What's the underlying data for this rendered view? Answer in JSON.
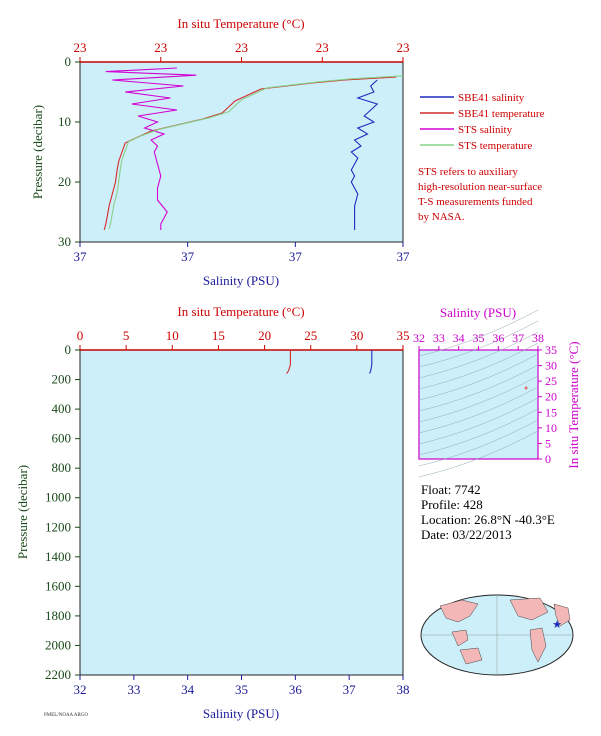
{
  "chart_data": [
    {
      "type": "line",
      "panel": "top",
      "top_axis_title": "In situ Temperature (°C)",
      "top_ticks": [
        "23",
        "23",
        "23",
        "23",
        "23"
      ],
      "bottom_axis_title": "Salinity (PSU)",
      "bottom_ticks": [
        "37",
        "37",
        "37",
        "37"
      ],
      "left_axis_title": "Pressure (decibar)",
      "left_ticks": [
        "0",
        "10",
        "20",
        "30"
      ],
      "ylim": [
        0,
        30
      ],
      "legend": [
        {
          "name": "SBE41 salinity",
          "color": "#1f2bbf"
        },
        {
          "name": "SBE41 temperature",
          "color": "#d42a2a"
        },
        {
          "name": "STS salinity",
          "color": "#d400d4"
        },
        {
          "name": "STS temperature",
          "color": "#88d088"
        }
      ],
      "note": [
        "STS refers to auxiliary",
        "high-resolution near-surface",
        "T-S measurements funded",
        "by NASA."
      ],
      "series": [
        {
          "name": "SBE41 salinity",
          "x_frac": [
            0.92,
            0.9,
            0.91,
            0.86,
            0.92,
            0.9,
            0.88,
            0.91,
            0.86,
            0.89,
            0.85,
            0.87,
            0.84,
            0.86,
            0.85,
            0.84,
            0.85,
            0.84,
            0.86,
            0.85,
            0.85,
            0.85
          ],
          "pressure": [
            3,
            4,
            5,
            6,
            7,
            8,
            9,
            10,
            11,
            12,
            13,
            14,
            15,
            16,
            17,
            18,
            19,
            20,
            22,
            24,
            26,
            28
          ]
        },
        {
          "name": "SBE41 temperature",
          "x_frac": [
            0.98,
            0.82,
            0.72,
            0.56,
            0.52,
            0.48,
            0.46,
            0.44,
            0.38,
            0.3,
            0.22,
            0.18,
            0.14,
            0.13,
            0.12,
            0.115,
            0.11,
            0.1,
            0.09,
            0.085,
            0.08,
            0.075
          ],
          "pressure": [
            2.5,
            3,
            3.5,
            4.5,
            5.5,
            6.5,
            7.5,
            8.5,
            9.5,
            10.5,
            11.5,
            12.5,
            13.5,
            15,
            16.5,
            18,
            20,
            22,
            24,
            25.5,
            27,
            28
          ]
        },
        {
          "name": "STS salinity",
          "x_frac": [
            0.3,
            0.08,
            0.36,
            0.1,
            0.32,
            0.14,
            0.28,
            0.16,
            0.3,
            0.18,
            0.24,
            0.2,
            0.26,
            0.22,
            0.24,
            0.23,
            0.24,
            0.25,
            0.24,
            0.24,
            0.27,
            0.25,
            0.25
          ],
          "pressure": [
            1,
            1.6,
            2.2,
            3,
            4,
            5,
            6,
            7,
            8,
            9,
            10,
            11,
            12,
            13,
            14,
            15,
            17,
            19,
            21,
            23,
            25,
            27,
            28
          ]
        },
        {
          "name": "STS temperature",
          "x_frac": [
            1.0,
            0.84,
            0.74,
            0.58,
            0.54,
            0.5,
            0.48,
            0.46,
            0.4,
            0.32,
            0.24,
            0.19,
            0.15,
            0.14,
            0.13,
            0.125,
            0.12,
            0.115,
            0.105,
            0.1,
            0.095,
            0.09
          ],
          "pressure": [
            2.3,
            2.8,
            3.3,
            4.3,
            5.3,
            6.3,
            7.3,
            8.3,
            9.3,
            10.3,
            11.3,
            12.3,
            13.3,
            14.8,
            16.3,
            17.8,
            19.8,
            21.8,
            23.8,
            25.3,
            26.8,
            27.8
          ]
        }
      ]
    },
    {
      "type": "line",
      "panel": "bottom",
      "top_axis_title": "In situ Temperature (°C)",
      "top_ticks": [
        "0",
        "5",
        "10",
        "15",
        "20",
        "25",
        "30",
        "35"
      ],
      "xlim_temperature": [
        0,
        35
      ],
      "bottom_axis_title": "Salinity (PSU)",
      "bottom_ticks": [
        "32",
        "33",
        "34",
        "35",
        "36",
        "37",
        "38"
      ],
      "xlim_salinity": [
        32,
        38
      ],
      "left_axis_title": "Pressure (decibar)",
      "left_ticks": [
        "0",
        "200",
        "400",
        "600",
        "800",
        "1000",
        "1200",
        "1400",
        "1600",
        "1800",
        "2000",
        "2200"
      ],
      "ylim": [
        0,
        2200
      ],
      "series": [
        {
          "name": "temperature",
          "color": "#d42a2a",
          "temperature": [
            22.8,
            22.8,
            22.6,
            22.4
          ],
          "pressure": [
            0,
            100,
            140,
            160
          ]
        },
        {
          "name": "salinity",
          "color": "#1f2bbf",
          "salinity": [
            37.42,
            37.42,
            37.4,
            37.38
          ],
          "pressure": [
            0,
            100,
            140,
            160
          ]
        }
      ]
    },
    {
      "type": "scatter",
      "panel": "ts-diagram",
      "top_axis_title": "Salinity (PSU)",
      "top_ticks": [
        "32",
        "33",
        "34",
        "35",
        "36",
        "37",
        "38"
      ],
      "xlim": [
        32,
        38
      ],
      "right_axis_title": "In situ Temperature (°C)",
      "right_ticks": [
        "0",
        "5",
        "10",
        "15",
        "20",
        "25",
        "30",
        "35"
      ],
      "ylim": [
        0,
        35
      ],
      "points": [
        {
          "salinity": 37.4,
          "temperature": 22.8
        }
      ]
    }
  ],
  "float_info": {
    "float": "Float:  7742",
    "profile": "Profile:  428",
    "location": "Location:  26.8°N  -40.3°E",
    "date": "Date:  03/22/2013"
  },
  "footer": "PMEL/NOAA ARGO",
  "colors": {
    "plot_bg": "#cdeffa",
    "temperature_axis": "#cc0000",
    "salinity_axis": "#1a1a99",
    "ts_axis": "#cc00cc",
    "pressure_axis": "#1a4a1a",
    "map_land": "#f4b7b7",
    "map_ocean": "#cdeffa"
  },
  "map": {
    "marker_icon": "star-icon"
  }
}
